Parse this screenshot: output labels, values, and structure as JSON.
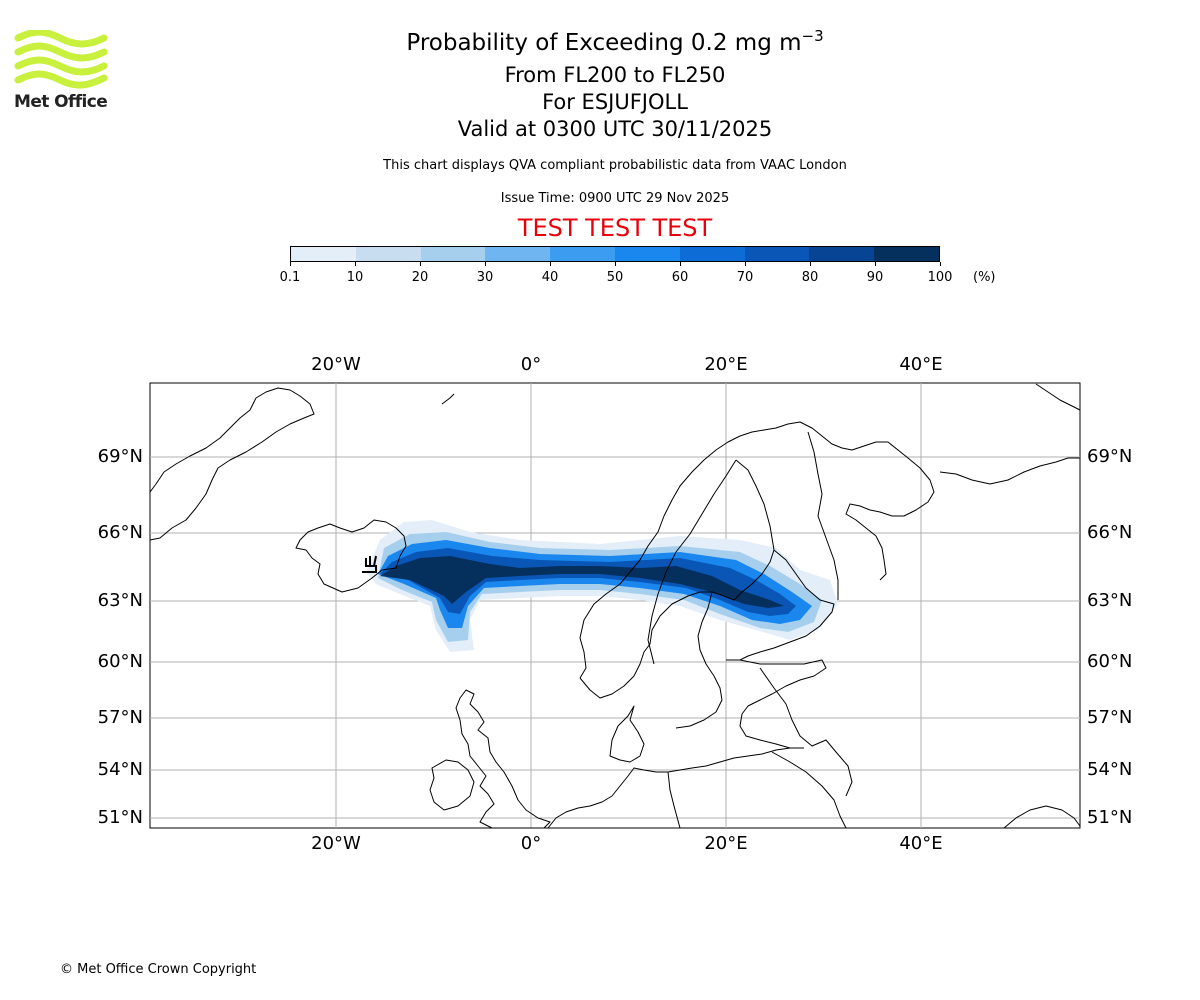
{
  "branding": {
    "logo_text": "Met Office",
    "logo_color": "#c8f03c"
  },
  "header": {
    "title_main": "Probability of Exceeding 0.2 mg m",
    "title_exponent": "−3",
    "level_range": "From FL200 to FL250",
    "volcano": "For ESJUFJOLL",
    "valid_time": "Valid at 0300 UTC 30/11/2025",
    "description": "This chart displays QVA compliant probabilistic data from VAAC London",
    "issue_time": "Issue Time: 0900 UTC 29 Nov 2025",
    "test_banner": "TEST TEST TEST",
    "test_color": "#e8000b"
  },
  "colorbar": {
    "ticks": [
      "0.1",
      "10",
      "20",
      "30",
      "40",
      "50",
      "60",
      "70",
      "80",
      "90",
      "100"
    ],
    "unit": "(%)",
    "colors": [
      "#e3eef9",
      "#c8ddf0",
      "#a6cfee",
      "#6fb5f2",
      "#3c9cf0",
      "#1a87ef",
      "#0d6cd6",
      "#0a56b6",
      "#084494",
      "#05305e"
    ]
  },
  "map": {
    "lon_labels_top": [
      "20°W",
      "0°",
      "20°E",
      "40°E"
    ],
    "lon_labels_bottom": [
      "20°W",
      "0°",
      "20°E",
      "40°E"
    ],
    "lat_labels_left": [
      "69°N",
      "66°N",
      "63°N",
      "60°N",
      "57°N",
      "54°N",
      "51°N"
    ],
    "lat_labels_right": [
      "69°N",
      "66°N",
      "63°N",
      "60°N",
      "57°N",
      "54°N",
      "51°N"
    ],
    "gridlines": true,
    "plume_direction": "east from Iceland across Norway, Sweden to Finland"
  },
  "footer": {
    "copyright": "© Met Office Crown Copyright"
  }
}
